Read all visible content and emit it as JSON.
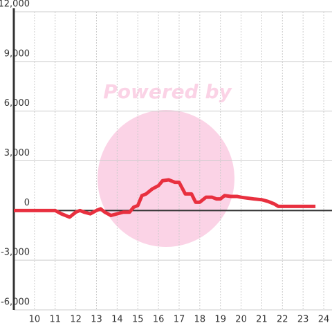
{
  "chart_data": {
    "type": "line",
    "watermark": "Powered by",
    "x": [
      9.0,
      11.0,
      11.3,
      11.7,
      12.0,
      12.2,
      12.4,
      12.7,
      13.0,
      13.2,
      13.4,
      13.7,
      14.0,
      14.3,
      14.6,
      14.8,
      15.0,
      15.2,
      15.4,
      15.7,
      16.0,
      16.2,
      16.5,
      16.8,
      17.0,
      17.3,
      17.6,
      17.8,
      18.0,
      18.3,
      18.6,
      18.8,
      19.0,
      19.2,
      19.5,
      19.8,
      20.0,
      20.3,
      20.6,
      21.0,
      21.3,
      21.6,
      21.8,
      22.0,
      23.0,
      23.6
    ],
    "series": [
      {
        "color": "#e8303f",
        "values": [
          0,
          0,
          -200,
          -400,
          -100,
          0,
          -100,
          -200,
          0,
          100,
          -100,
          -300,
          -200,
          -100,
          -100,
          200,
          300,
          900,
          1000,
          1300,
          1500,
          1800,
          1850,
          1700,
          1700,
          1000,
          1000,
          500,
          500,
          800,
          800,
          700,
          700,
          900,
          850,
          850,
          800,
          750,
          700,
          650,
          550,
          400,
          250,
          250,
          250,
          250
        ]
      }
    ],
    "xlim": [
      9,
      24.4
    ],
    "xticks": [
      10,
      11,
      12,
      13,
      14,
      15,
      16,
      17,
      18,
      19,
      20,
      21,
      22,
      23,
      24
    ],
    "ylim": [
      -6000,
      12000
    ],
    "yticks": [
      {
        "value": -6000,
        "label": "-6,000"
      },
      {
        "value": -3000,
        "label": "-3,000"
      },
      0,
      {
        "value": 3000,
        "label": "3,000"
      },
      {
        "value": 6000,
        "label": "6,000"
      },
      {
        "value": 9000,
        "label": "9,000"
      },
      {
        "value": 12000,
        "label": "12,000"
      }
    ],
    "grid": true
  }
}
